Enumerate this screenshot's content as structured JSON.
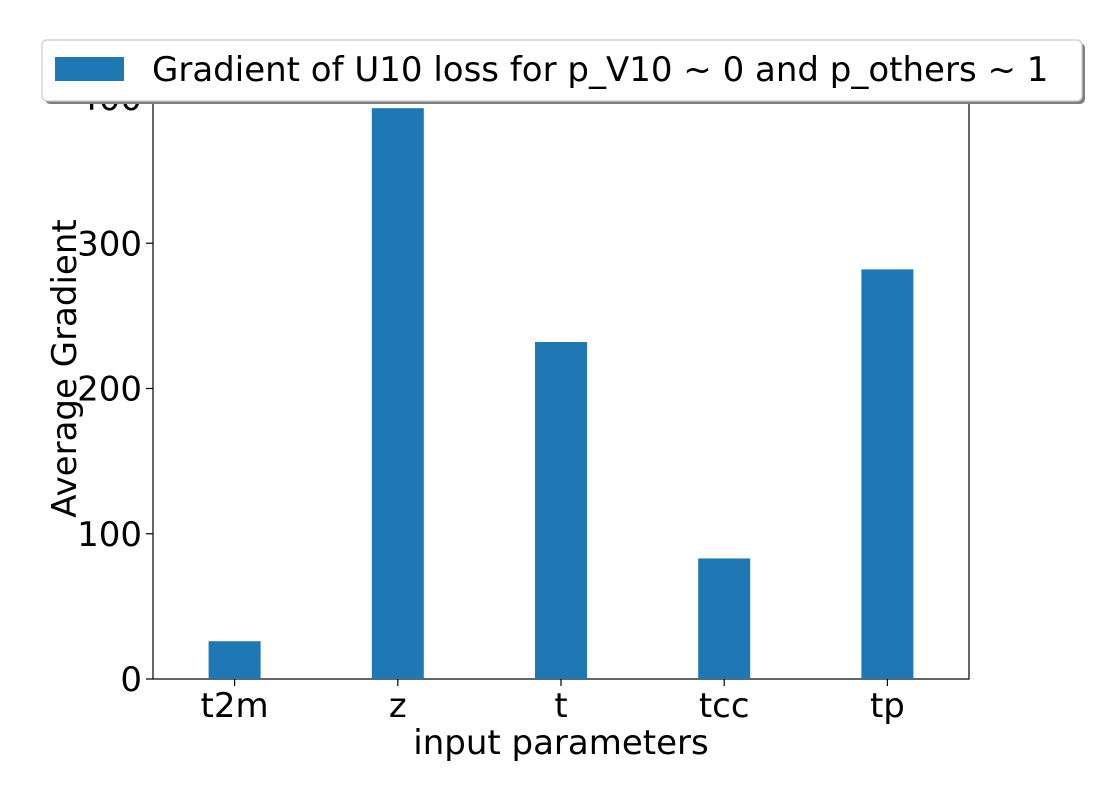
{
  "chart_data": {
    "type": "bar",
    "categories": [
      "t2m",
      "z",
      "t",
      "tcc",
      "tp"
    ],
    "series": [
      {
        "name": "Gradient of U10 loss for p_V10 ~ 0 and p_others ~ 1",
        "values": [
          26,
          393,
          232,
          83,
          282
        ]
      }
    ],
    "title": "",
    "xlabel": "input parameters",
    "ylabel": "Average Gradient",
    "ylim": [
      0,
      400
    ],
    "yticks": [
      "0",
      "100",
      "200",
      "300",
      "400"
    ],
    "grid": false,
    "legend_position": "top-center",
    "colors": {
      "bar": "#1f77b4",
      "axes": "#000000",
      "legend_border": "#cccccc"
    }
  }
}
